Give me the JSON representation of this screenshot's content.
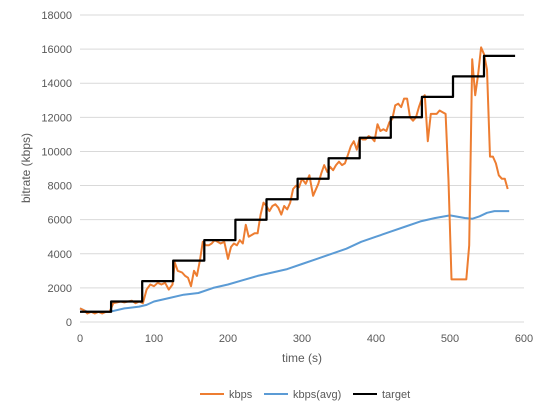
{
  "chart_data": {
    "type": "line",
    "title": "",
    "xlabel": "time (s)",
    "ylabel": "bitrate (kbps)",
    "xlim": [
      0,
      600
    ],
    "ylim": [
      0,
      18000
    ],
    "x_ticks": [
      0,
      100,
      200,
      300,
      400,
      500,
      600
    ],
    "y_ticks": [
      0,
      2000,
      4000,
      6000,
      8000,
      10000,
      12000,
      14000,
      16000,
      18000
    ],
    "grid": "horizontal",
    "legend_position": "bottom",
    "series": [
      {
        "name": "kbps",
        "color": "#ED7D31",
        "points": [
          [
            0,
            800
          ],
          [
            5,
            700
          ],
          [
            10,
            500
          ],
          [
            15,
            600
          ],
          [
            20,
            500
          ],
          [
            25,
            600
          ],
          [
            30,
            500
          ],
          [
            35,
            600
          ],
          [
            40,
            600
          ],
          [
            45,
            1100
          ],
          [
            50,
            1150
          ],
          [
            55,
            1200
          ],
          [
            60,
            1150
          ],
          [
            65,
            1200
          ],
          [
            70,
            1250
          ],
          [
            75,
            1100
          ],
          [
            80,
            1200
          ],
          [
            85,
            1100
          ],
          [
            90,
            1900
          ],
          [
            95,
            2200
          ],
          [
            100,
            2100
          ],
          [
            105,
            2300
          ],
          [
            110,
            2200
          ],
          [
            115,
            2300
          ],
          [
            120,
            1900
          ],
          [
            125,
            2200
          ],
          [
            128,
            3500
          ],
          [
            132,
            3000
          ],
          [
            138,
            2900
          ],
          [
            142,
            2700
          ],
          [
            146,
            2600
          ],
          [
            150,
            2100
          ],
          [
            154,
            3000
          ],
          [
            158,
            2700
          ],
          [
            162,
            3600
          ],
          [
            166,
            4700
          ],
          [
            170,
            4500
          ],
          [
            174,
            4500
          ],
          [
            178,
            4600
          ],
          [
            182,
            4800
          ],
          [
            186,
            4700
          ],
          [
            190,
            4600
          ],
          [
            195,
            4700
          ],
          [
            200,
            3700
          ],
          [
            204,
            4400
          ],
          [
            208,
            4600
          ],
          [
            212,
            4500
          ],
          [
            216,
            4800
          ],
          [
            220,
            4600
          ],
          [
            224,
            5700
          ],
          [
            228,
            5000
          ],
          [
            232,
            5100
          ],
          [
            236,
            5200
          ],
          [
            240,
            5200
          ],
          [
            244,
            6300
          ],
          [
            248,
            7000
          ],
          [
            252,
            6800
          ],
          [
            256,
            6500
          ],
          [
            260,
            6800
          ],
          [
            264,
            6900
          ],
          [
            268,
            6700
          ],
          [
            272,
            6300
          ],
          [
            276,
            6800
          ],
          [
            280,
            6600
          ],
          [
            284,
            7000
          ],
          [
            288,
            7800
          ],
          [
            292,
            8000
          ],
          [
            296,
            7900
          ],
          [
            300,
            8400
          ],
          [
            305,
            8100
          ],
          [
            310,
            8600
          ],
          [
            315,
            7400
          ],
          [
            318,
            7700
          ],
          [
            322,
            8100
          ],
          [
            326,
            8700
          ],
          [
            330,
            9200
          ],
          [
            334,
            8800
          ],
          [
            338,
            9100
          ],
          [
            342,
            8900
          ],
          [
            346,
            9200
          ],
          [
            350,
            9400
          ],
          [
            354,
            9200
          ],
          [
            358,
            9300
          ],
          [
            362,
            9800
          ],
          [
            366,
            10300
          ],
          [
            370,
            10600
          ],
          [
            374,
            10100
          ],
          [
            378,
            10800
          ],
          [
            382,
            10700
          ],
          [
            386,
            10700
          ],
          [
            390,
            10900
          ],
          [
            394,
            10800
          ],
          [
            398,
            10600
          ],
          [
            402,
            11600
          ],
          [
            406,
            11200
          ],
          [
            410,
            11300
          ],
          [
            414,
            11200
          ],
          [
            418,
            11700
          ],
          [
            422,
            11900
          ],
          [
            426,
            12700
          ],
          [
            430,
            12800
          ],
          [
            434,
            12600
          ],
          [
            438,
            13100
          ],
          [
            442,
            13100
          ],
          [
            446,
            12000
          ],
          [
            450,
            11800
          ],
          [
            454,
            12000
          ],
          [
            458,
            12600
          ],
          [
            462,
            13100
          ],
          [
            466,
            13300
          ],
          [
            470,
            10600
          ],
          [
            474,
            12200
          ],
          [
            478,
            12200
          ],
          [
            482,
            12200
          ],
          [
            486,
            12400
          ],
          [
            490,
            12300
          ],
          [
            494,
            12200
          ],
          [
            498,
            8300
          ],
          [
            502,
            2500
          ],
          [
            506,
            2500
          ],
          [
            510,
            2500
          ],
          [
            514,
            2500
          ],
          [
            518,
            2500
          ],
          [
            522,
            2500
          ],
          [
            526,
            4500
          ],
          [
            530,
            15400
          ],
          [
            534,
            13300
          ],
          [
            538,
            14500
          ],
          [
            542,
            16100
          ],
          [
            546,
            15700
          ],
          [
            550,
            14800
          ],
          [
            554,
            9700
          ],
          [
            558,
            9700
          ],
          [
            562,
            9300
          ],
          [
            566,
            8600
          ],
          [
            570,
            8400
          ],
          [
            574,
            8400
          ],
          [
            578,
            7800
          ]
        ]
      },
      {
        "name": "kbps(avg)",
        "color": "#5B9BD5",
        "points": [
          [
            0,
            800
          ],
          [
            5,
            700
          ],
          [
            10,
            600
          ],
          [
            20,
            600
          ],
          [
            40,
            600
          ],
          [
            60,
            800
          ],
          [
            80,
            900
          ],
          [
            90,
            1000
          ],
          [
            100,
            1200
          ],
          [
            120,
            1400
          ],
          [
            140,
            1600
          ],
          [
            160,
            1700
          ],
          [
            180,
            2000
          ],
          [
            200,
            2200
          ],
          [
            220,
            2450
          ],
          [
            240,
            2700
          ],
          [
            260,
            2900
          ],
          [
            280,
            3100
          ],
          [
            300,
            3400
          ],
          [
            320,
            3700
          ],
          [
            340,
            4000
          ],
          [
            360,
            4300
          ],
          [
            380,
            4700
          ],
          [
            400,
            5000
          ],
          [
            420,
            5300
          ],
          [
            440,
            5600
          ],
          [
            460,
            5900
          ],
          [
            480,
            6100
          ],
          [
            500,
            6250
          ],
          [
            520,
            6100
          ],
          [
            530,
            6050
          ],
          [
            540,
            6200
          ],
          [
            550,
            6400
          ],
          [
            560,
            6500
          ],
          [
            580,
            6500
          ]
        ]
      },
      {
        "name": "target",
        "color": "#000000",
        "points": [
          [
            0,
            600
          ],
          [
            42,
            600
          ],
          [
            42,
            1200
          ],
          [
            84,
            1200
          ],
          [
            84,
            2400
          ],
          [
            126,
            2400
          ],
          [
            126,
            3600
          ],
          [
            168,
            3600
          ],
          [
            168,
            4800
          ],
          [
            210,
            4800
          ],
          [
            210,
            6000
          ],
          [
            252,
            6000
          ],
          [
            252,
            7200
          ],
          [
            294,
            7200
          ],
          [
            294,
            8400
          ],
          [
            336,
            8400
          ],
          [
            336,
            9600
          ],
          [
            378,
            9600
          ],
          [
            378,
            10800
          ],
          [
            420,
            10800
          ],
          [
            420,
            12000
          ],
          [
            462,
            12000
          ],
          [
            462,
            13200
          ],
          [
            504,
            13200
          ],
          [
            504,
            14400
          ],
          [
            546,
            14400
          ],
          [
            546,
            15600
          ],
          [
            588,
            15600
          ]
        ]
      }
    ]
  }
}
